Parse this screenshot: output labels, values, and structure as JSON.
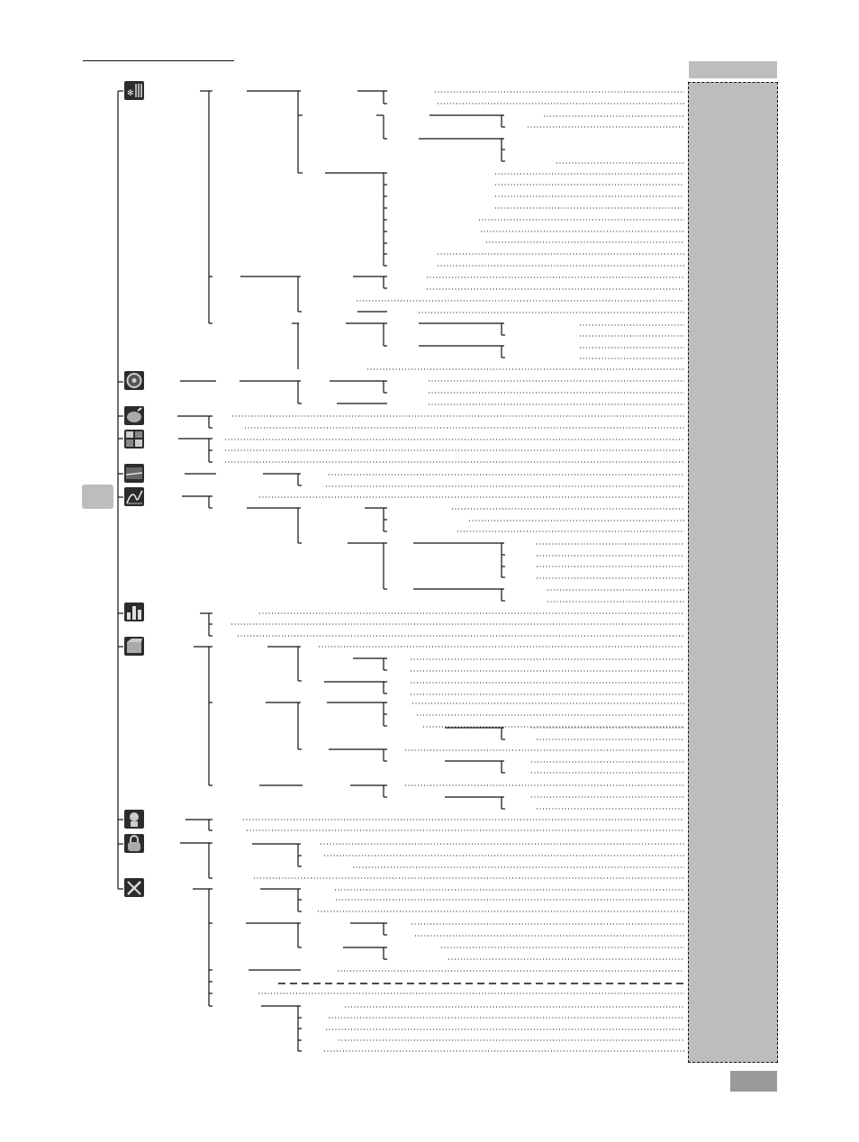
{
  "page": {
    "menu_icons": [
      "climate-icon",
      "steering-wheel-icon",
      "compass-ball-icon",
      "grid-icon",
      "display-icon",
      "graph-icon",
      "bar-chart-icon",
      "box-icon",
      "person-icon",
      "lock-icon",
      "tools-icon"
    ],
    "colors": {
      "panel_gray": "#bdbdbd",
      "page_box_gray": "#9a9a9a",
      "line": "#111111",
      "icon_dark": "#2c2c2c"
    }
  }
}
